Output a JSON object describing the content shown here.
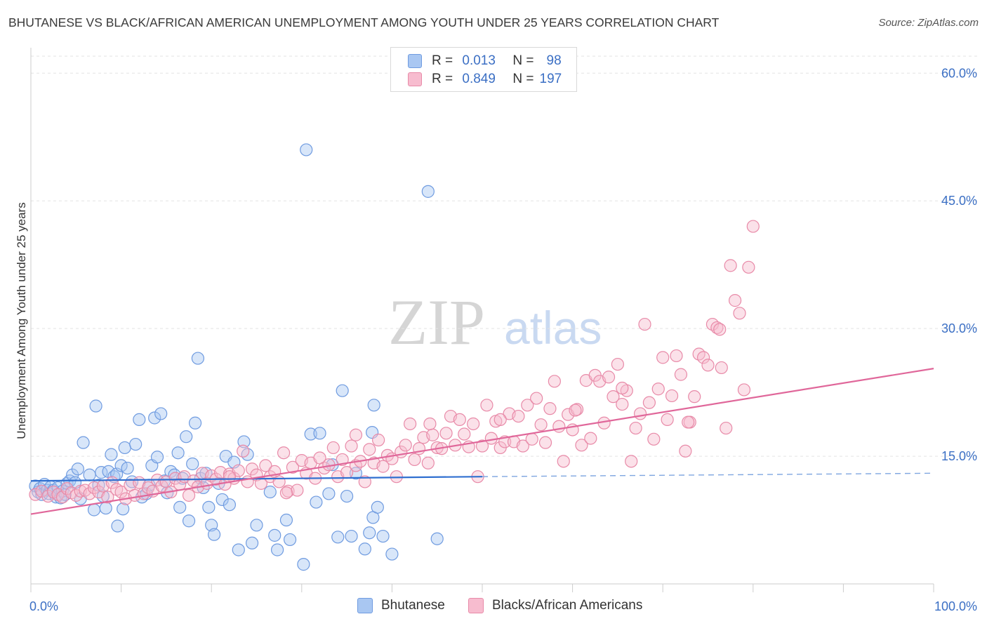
{
  "header": {
    "title": "BHUTANESE VS BLACK/AFRICAN AMERICAN UNEMPLOYMENT AMONG YOUTH UNDER 25 YEARS CORRELATION CHART",
    "source": "Source: ZipAtlas.com"
  },
  "watermark": {
    "zip": "ZIP",
    "atlas": "atlas"
  },
  "legend": {
    "rows": [
      {
        "r_label": "R =",
        "r_value": "0.013",
        "n_label": "N =",
        "n_value": "98",
        "color": "#a9c7f2",
        "border": "#6f9be0"
      },
      {
        "r_label": "R =",
        "r_value": "0.849",
        "n_label": "N =",
        "n_value": "197",
        "color": "#f7bccf",
        "border": "#e88aa8"
      }
    ]
  },
  "bottom_legend": {
    "items": [
      {
        "label": "Bhutanese",
        "color": "#a9c7f2",
        "border": "#6f9be0"
      },
      {
        "label": "Blacks/African Americans",
        "color": "#f7bccf",
        "border": "#e88aa8"
      }
    ]
  },
  "chart_data": {
    "type": "scatter",
    "title": "BHUTANESE VS BLACK/AFRICAN AMERICAN UNEMPLOYMENT AMONG YOUTH UNDER 25 YEARS CORRELATION CHART",
    "xlabel": "",
    "ylabel": "Unemployment Among Youth under 25 years",
    "x_tick_labels": [
      "0.0%",
      "100.0%"
    ],
    "y_tick_labels": [
      "15.0%",
      "30.0%",
      "45.0%",
      "60.0%"
    ],
    "y_ticks": [
      15,
      30,
      45,
      60
    ],
    "xlim": [
      0,
      100
    ],
    "ylim": [
      0,
      62
    ],
    "grid": "horizontal dashed",
    "series": [
      {
        "name": "Bhutanese",
        "color": "#6f9be0",
        "fill": "#a9c7f2",
        "trend": {
          "x": [
            0,
            50
          ],
          "y": [
            12.1,
            12.6
          ],
          "dashed_to": [
            100,
            13.0
          ]
        },
        "points": [
          [
            0.5,
            11.5
          ],
          [
            0.8,
            10.8
          ],
          [
            1.0,
            11.2
          ],
          [
            1.2,
            10.5
          ],
          [
            1.5,
            11.7
          ],
          [
            1.8,
            11.0
          ],
          [
            2.0,
            10.6
          ],
          [
            2.2,
            11.4
          ],
          [
            2.5,
            11.0
          ],
          [
            2.8,
            10.2
          ],
          [
            3.0,
            11.3
          ],
          [
            3.3,
            10.1
          ],
          [
            3.5,
            10.9
          ],
          [
            3.8,
            10.5
          ],
          [
            4.0,
            11.8
          ],
          [
            4.3,
            12.1
          ],
          [
            4.6,
            12.8
          ],
          [
            4.9,
            11.9
          ],
          [
            5.2,
            13.5
          ],
          [
            5.5,
            10.0
          ],
          [
            5.8,
            16.6
          ],
          [
            6.5,
            12.8
          ],
          [
            7.0,
            8.7
          ],
          [
            7.2,
            20.9
          ],
          [
            7.5,
            11.6
          ],
          [
            7.8,
            13.1
          ],
          [
            8.0,
            10.3
          ],
          [
            8.3,
            8.9
          ],
          [
            8.6,
            13.2
          ],
          [
            8.9,
            15.2
          ],
          [
            9.2,
            12.6
          ],
          [
            9.5,
            12.9
          ],
          [
            9.6,
            6.8
          ],
          [
            10.0,
            13.9
          ],
          [
            10.2,
            8.8
          ],
          [
            10.4,
            16.0
          ],
          [
            10.7,
            13.6
          ],
          [
            11.2,
            12.0
          ],
          [
            11.6,
            16.4
          ],
          [
            12.0,
            19.3
          ],
          [
            12.3,
            10.2
          ],
          [
            12.8,
            10.6
          ],
          [
            13.1,
            11.6
          ],
          [
            13.4,
            13.9
          ],
          [
            13.7,
            19.5
          ],
          [
            14.0,
            14.9
          ],
          [
            14.4,
            20.0
          ],
          [
            14.8,
            12.1
          ],
          [
            15.1,
            10.7
          ],
          [
            15.5,
            13.2
          ],
          [
            15.9,
            12.8
          ],
          [
            16.3,
            15.4
          ],
          [
            16.5,
            9.0
          ],
          [
            16.8,
            12.4
          ],
          [
            17.2,
            17.3
          ],
          [
            17.5,
            7.4
          ],
          [
            17.9,
            14.1
          ],
          [
            18.2,
            18.9
          ],
          [
            18.5,
            26.5
          ],
          [
            18.8,
            12.4
          ],
          [
            19.1,
            11.3
          ],
          [
            19.4,
            13.0
          ],
          [
            19.7,
            9.0
          ],
          [
            20.0,
            6.9
          ],
          [
            20.3,
            5.8
          ],
          [
            20.8,
            11.8
          ],
          [
            21.2,
            9.9
          ],
          [
            21.6,
            15.0
          ],
          [
            22.0,
            9.3
          ],
          [
            22.5,
            14.3
          ],
          [
            23.0,
            4.0
          ],
          [
            23.6,
            16.7
          ],
          [
            24.0,
            15.2
          ],
          [
            24.5,
            4.8
          ],
          [
            25.0,
            6.9
          ],
          [
            26.5,
            10.8
          ],
          [
            27.0,
            5.7
          ],
          [
            27.3,
            4.0
          ],
          [
            28.3,
            7.5
          ],
          [
            28.7,
            5.2
          ],
          [
            30.2,
            2.3
          ],
          [
            30.5,
            51.0
          ],
          [
            31.0,
            17.6
          ],
          [
            31.6,
            9.6
          ],
          [
            32.0,
            17.7
          ],
          [
            33.0,
            10.6
          ],
          [
            33.4,
            14.0
          ],
          [
            34.0,
            5.5
          ],
          [
            34.5,
            22.7
          ],
          [
            35.0,
            10.3
          ],
          [
            35.5,
            5.6
          ],
          [
            36.0,
            13.0
          ],
          [
            37.0,
            4.1
          ],
          [
            37.5,
            6.0
          ],
          [
            37.9,
            7.8
          ],
          [
            38.0,
            21.0
          ],
          [
            38.4,
            9.0
          ],
          [
            39.0,
            5.6
          ],
          [
            40.0,
            3.5
          ],
          [
            44.0,
            46.1
          ],
          [
            45.0,
            5.3
          ],
          [
            37.8,
            17.8
          ]
        ]
      },
      {
        "name": "Blacks/African Americans",
        "color": "#e88aa8",
        "fill": "#f7bccf",
        "trend": {
          "x": [
            0,
            100
          ],
          "y": [
            8.2,
            25.3
          ]
        },
        "points": [
          [
            0.5,
            10.5
          ],
          [
            1.2,
            10.9
          ],
          [
            1.9,
            10.3
          ],
          [
            2.5,
            10.8
          ],
          [
            3.0,
            10.5
          ],
          [
            3.5,
            10.2
          ],
          [
            4.0,
            11.2
          ],
          [
            4.5,
            10.7
          ],
          [
            5.0,
            10.4
          ],
          [
            5.5,
            10.9
          ],
          [
            6.0,
            11.0
          ],
          [
            6.5,
            10.6
          ],
          [
            7.0,
            11.3
          ],
          [
            7.5,
            10.8
          ],
          [
            8.0,
            11.5
          ],
          [
            8.5,
            10.2
          ],
          [
            9.0,
            11.9
          ],
          [
            9.5,
            11.1
          ],
          [
            10.0,
            10.8
          ],
          [
            10.5,
            10.0
          ],
          [
            11.0,
            11.6
          ],
          [
            11.5,
            10.4
          ],
          [
            12.0,
            11.9
          ],
          [
            12.5,
            10.6
          ],
          [
            13.0,
            11.3
          ],
          [
            13.5,
            10.9
          ],
          [
            14.0,
            12.2
          ],
          [
            14.5,
            11.5
          ],
          [
            15.0,
            12.0
          ],
          [
            15.5,
            10.8
          ],
          [
            16.0,
            12.4
          ],
          [
            16.5,
            11.7
          ],
          [
            17.0,
            12.6
          ],
          [
            17.5,
            10.4
          ],
          [
            18.0,
            12.1
          ],
          [
            18.5,
            11.4
          ],
          [
            19.0,
            13.0
          ],
          [
            19.5,
            11.8
          ],
          [
            20.0,
            12.7
          ],
          [
            20.5,
            12.3
          ],
          [
            21.0,
            13.1
          ],
          [
            21.5,
            11.7
          ],
          [
            22.0,
            12.9
          ],
          [
            22.5,
            12.4
          ],
          [
            23.0,
            13.3
          ],
          [
            23.5,
            15.6
          ],
          [
            24.0,
            12.0
          ],
          [
            24.5,
            13.5
          ],
          [
            25.0,
            12.8
          ],
          [
            25.5,
            11.8
          ],
          [
            26.0,
            13.9
          ],
          [
            26.5,
            12.6
          ],
          [
            27.0,
            13.2
          ],
          [
            27.5,
            12.0
          ],
          [
            28.0,
            15.4
          ],
          [
            28.5,
            10.9
          ],
          [
            29.0,
            13.7
          ],
          [
            29.5,
            11.0
          ],
          [
            30.0,
            14.5
          ],
          [
            30.5,
            13.0
          ],
          [
            31.0,
            14.2
          ],
          [
            31.5,
            12.4
          ],
          [
            32.0,
            14.8
          ],
          [
            32.5,
            13.6
          ],
          [
            33.0,
            14.0
          ],
          [
            33.5,
            16.0
          ],
          [
            34.0,
            12.6
          ],
          [
            34.5,
            14.6
          ],
          [
            35.0,
            13.1
          ],
          [
            35.5,
            16.2
          ],
          [
            36.0,
            13.9
          ],
          [
            36.5,
            14.4
          ],
          [
            37.0,
            12.0
          ],
          [
            37.5,
            15.8
          ],
          [
            38.0,
            14.2
          ],
          [
            38.5,
            16.9
          ],
          [
            39.0,
            13.8
          ],
          [
            39.5,
            15.1
          ],
          [
            40.0,
            14.7
          ],
          [
            40.5,
            12.6
          ],
          [
            41.0,
            15.5
          ],
          [
            41.5,
            16.3
          ],
          [
            42.0,
            18.8
          ],
          [
            42.5,
            14.6
          ],
          [
            43.0,
            15.9
          ],
          [
            43.5,
            17.2
          ],
          [
            44.0,
            14.2
          ],
          [
            44.5,
            17.5
          ],
          [
            45.0,
            16.0
          ],
          [
            45.5,
            15.9
          ],
          [
            46.0,
            17.7
          ],
          [
            46.5,
            19.7
          ],
          [
            47.0,
            16.3
          ],
          [
            47.5,
            19.3
          ],
          [
            48.0,
            17.6
          ],
          [
            48.5,
            16.1
          ],
          [
            49.0,
            18.8
          ],
          [
            49.5,
            12.6
          ],
          [
            50.0,
            16.2
          ],
          [
            50.5,
            21.0
          ],
          [
            51.0,
            17.1
          ],
          [
            51.5,
            19.1
          ],
          [
            52.0,
            16.0
          ],
          [
            52.5,
            16.7
          ],
          [
            53.0,
            20.0
          ],
          [
            53.5,
            16.7
          ],
          [
            54.0,
            19.7
          ],
          [
            54.5,
            16.2
          ],
          [
            55.0,
            21.0
          ],
          [
            55.5,
            17.0
          ],
          [
            56.0,
            21.8
          ],
          [
            56.5,
            18.7
          ],
          [
            57.0,
            16.6
          ],
          [
            57.5,
            20.6
          ],
          [
            58.0,
            23.8
          ],
          [
            58.5,
            18.5
          ],
          [
            59.0,
            14.4
          ],
          [
            59.5,
            19.9
          ],
          [
            60.0,
            18.1
          ],
          [
            60.5,
            20.5
          ],
          [
            61.0,
            16.3
          ],
          [
            61.5,
            23.9
          ],
          [
            62.0,
            17.1
          ],
          [
            62.5,
            24.5
          ],
          [
            63.0,
            23.8
          ],
          [
            63.5,
            18.9
          ],
          [
            64.0,
            24.3
          ],
          [
            64.5,
            22.0
          ],
          [
            65.0,
            25.8
          ],
          [
            65.5,
            21.1
          ],
          [
            66.0,
            22.7
          ],
          [
            66.5,
            14.4
          ],
          [
            67.0,
            18.3
          ],
          [
            67.5,
            20.0
          ],
          [
            68.0,
            30.5
          ],
          [
            68.5,
            21.3
          ],
          [
            69.0,
            17.0
          ],
          [
            69.5,
            22.9
          ],
          [
            70.0,
            26.6
          ],
          [
            70.5,
            19.3
          ],
          [
            71.0,
            22.1
          ],
          [
            71.5,
            26.8
          ],
          [
            72.0,
            24.6
          ],
          [
            72.5,
            15.6
          ],
          [
            73.0,
            19.0
          ],
          [
            73.5,
            22.0
          ],
          [
            74.0,
            27.0
          ],
          [
            74.5,
            26.6
          ],
          [
            75.0,
            25.7
          ],
          [
            75.5,
            30.5
          ],
          [
            76.0,
            30.1
          ],
          [
            76.5,
            25.4
          ],
          [
            77.0,
            18.3
          ],
          [
            77.5,
            37.4
          ],
          [
            78.0,
            33.3
          ],
          [
            78.5,
            31.8
          ],
          [
            79.0,
            22.8
          ],
          [
            79.5,
            37.2
          ],
          [
            80.0,
            42.0
          ],
          [
            28.3,
            10.7
          ],
          [
            22.0,
            12.6
          ],
          [
            36.0,
            17.5
          ],
          [
            44.2,
            18.8
          ],
          [
            52.0,
            19.3
          ],
          [
            60.3,
            20.4
          ],
          [
            65.5,
            23.0
          ],
          [
            72.8,
            19.0
          ],
          [
            76.3,
            29.9
          ]
        ]
      }
    ]
  }
}
